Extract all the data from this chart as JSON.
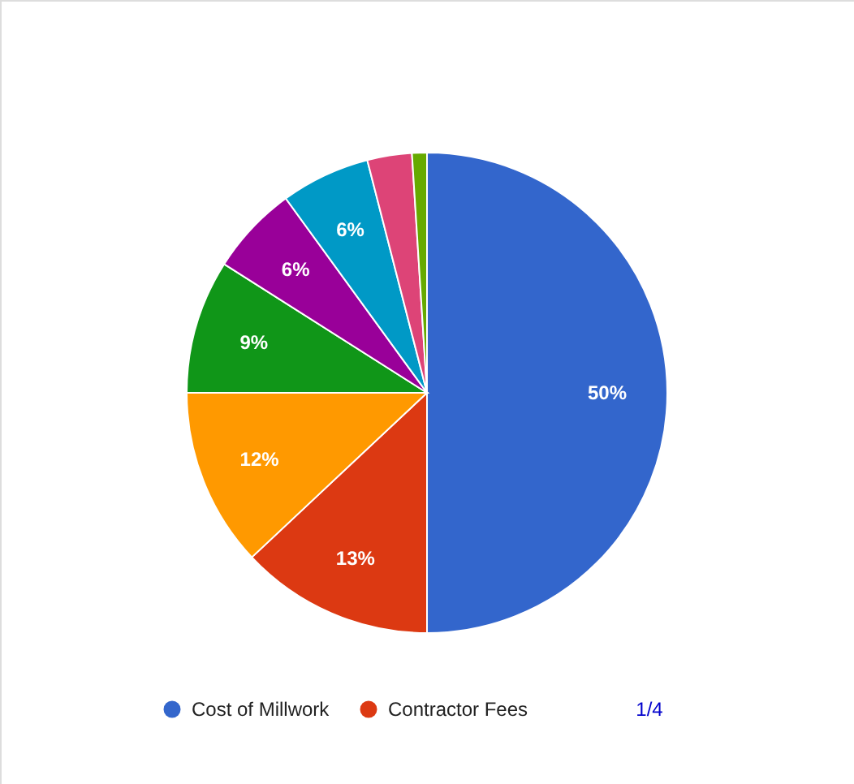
{
  "chart_data": {
    "type": "pie",
    "categories": [
      "Cost of Millwork",
      "Contractor Fees",
      null,
      null,
      null,
      null,
      null,
      null
    ],
    "values": [
      50,
      13,
      12,
      9,
      6,
      6,
      3,
      1
    ],
    "colors": [
      "#3366cc",
      "#dc3912",
      "#ff9900",
      "#109618",
      "#990099",
      "#0099c6",
      "#dd4477",
      "#66aa00"
    ],
    "value_labels": [
      "50%",
      "13%",
      "12%",
      "9%",
      "6%",
      "6%",
      null,
      null
    ],
    "legend": "bottom",
    "annotations": [
      "1/4"
    ]
  }
}
